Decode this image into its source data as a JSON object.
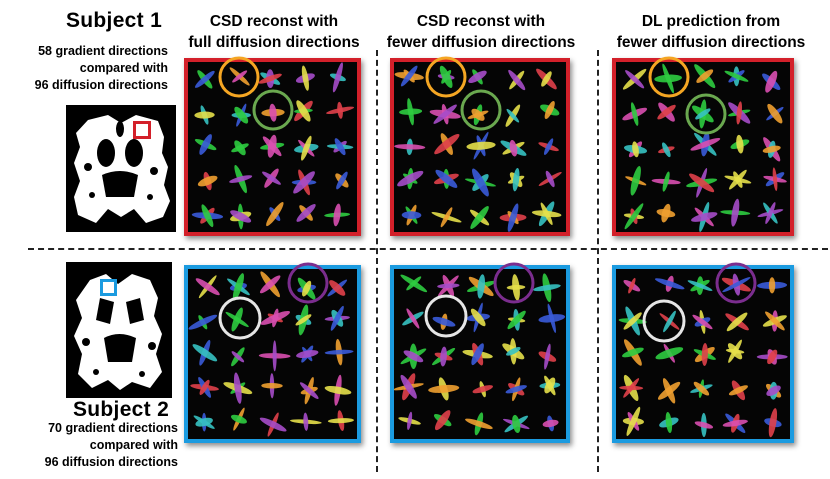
{
  "subject1": {
    "title": "Subject 1",
    "note_lines": [
      "58 gradient directions",
      "compared with",
      "96 diffusion directions"
    ]
  },
  "subject2": {
    "title": "Subject 2",
    "note_lines": [
      "70 gradient directions",
      "compared with",
      "96 diffusion directions"
    ]
  },
  "columns": [
    {
      "line1": "CSD reconst with",
      "line2": "full diffusion directions"
    },
    {
      "line1": "CSD reconst with",
      "line2": "fewer diffusion directions"
    },
    {
      "line1": "DL prediction from",
      "line2": "fewer diffusion directions"
    }
  ],
  "colors": {
    "roi_row1": "#d3202a",
    "roi_row2": "#1b9be0",
    "circle_orange": "#f5a623",
    "circle_green": "#6aa84f",
    "circle_white": "#e6e6e6",
    "circle_purple": "#7b2d8e"
  }
}
